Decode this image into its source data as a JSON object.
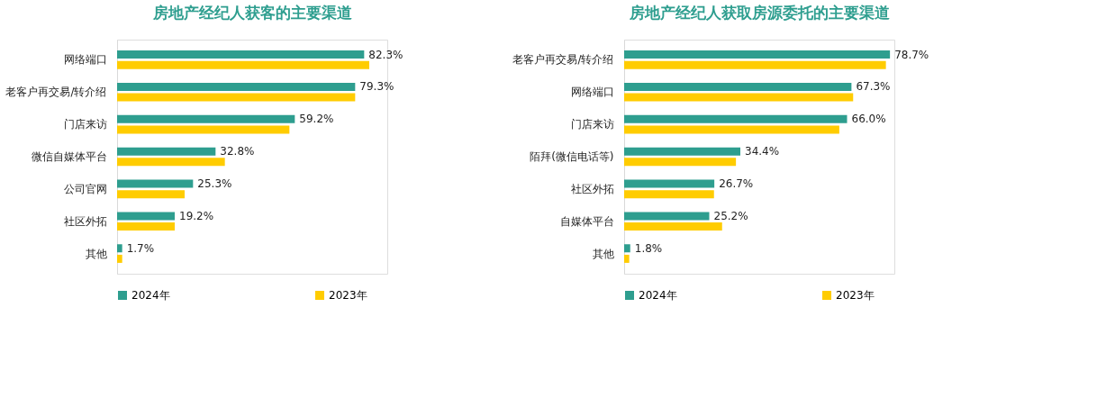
{
  "chart_data": [
    {
      "type": "bar",
      "orientation": "horizontal",
      "title": "房地产经纪人获客的主要渠道",
      "legend": "bottom",
      "categories": [
        "网络端口",
        "老客户再交易/转介绍",
        "门店来访",
        "微信自媒体平台",
        "公司官网",
        "社区外拓",
        "其他"
      ],
      "series": [
        {
          "name": "2024年",
          "color": "#2e9e8f",
          "values": [
            82.3,
            79.3,
            59.2,
            32.8,
            25.3,
            19.2,
            1.7
          ],
          "value_labels": [
            "82.3%",
            "79.3%",
            "59.2%",
            "32.8%",
            "25.3%",
            "19.2%",
            "1.7%"
          ]
        },
        {
          "name": "2023年",
          "color": "#ffcc00",
          "values": [
            84.0,
            79.3,
            57.4,
            35.9,
            22.5,
            19.2,
            1.7
          ]
        }
      ]
    },
    {
      "type": "bar",
      "orientation": "horizontal",
      "title": "房地产经纪人获取房源委托的主要渠道",
      "legend": "bottom",
      "categories": [
        "老客户再交易/转介绍",
        "网络端口",
        "门店来访",
        "陌拜(微信电话等)",
        "社区外拓",
        "自媒体平台",
        "其他"
      ],
      "series": [
        {
          "name": "2024年",
          "color": "#2e9e8f",
          "values": [
            78.7,
            67.3,
            66.0,
            34.4,
            26.7,
            25.2,
            1.8
          ],
          "value_labels": [
            "78.7%",
            "67.3%",
            "66.0%",
            "34.4%",
            "26.7%",
            "25.2%",
            "1.8%"
          ]
        },
        {
          "name": "2023年",
          "color": "#ffcc00",
          "values": [
            77.5,
            67.8,
            63.7,
            33.1,
            26.6,
            29.0,
            1.5
          ]
        }
      ]
    }
  ]
}
